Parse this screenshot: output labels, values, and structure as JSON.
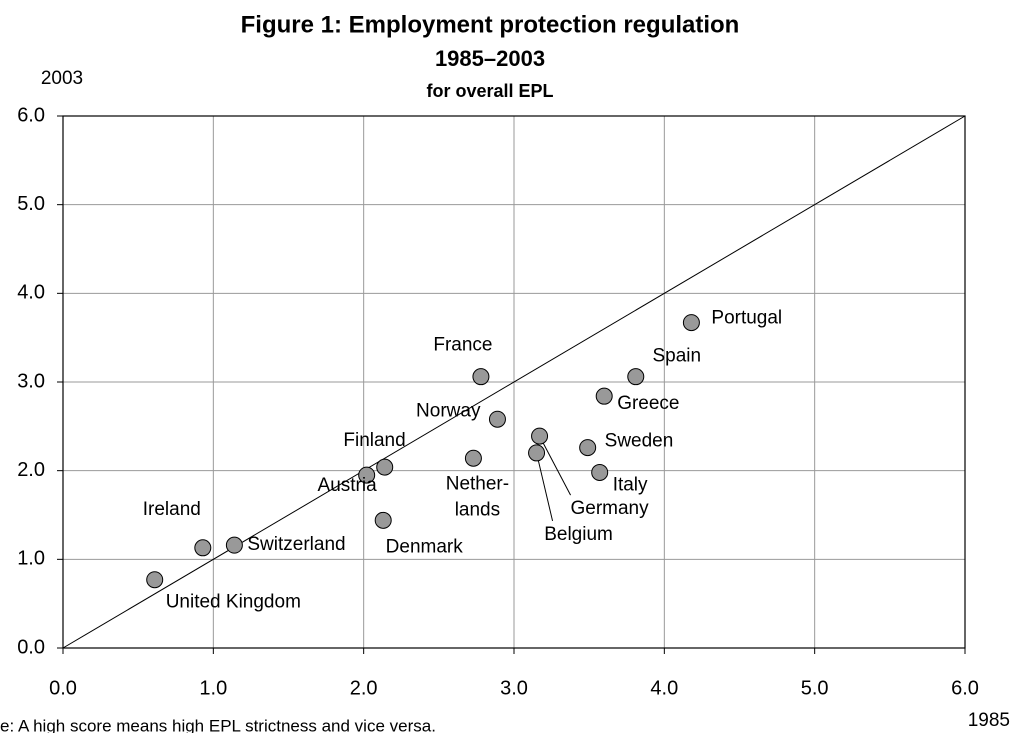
{
  "chart_data": {
    "type": "scatter",
    "title": "Figure 1: Employment protection regulation",
    "subtitle": "1985–2003",
    "subtitle2": "for overall EPL",
    "x_label": "1985",
    "y_label": "2003",
    "note": "e: A high score means high EPL strictness and vice versa.",
    "xlim": [
      0,
      6
    ],
    "ylim": [
      0,
      6
    ],
    "xticks": [
      {
        "value": 0,
        "label": "0.0"
      },
      {
        "value": 1,
        "label": "1.0"
      },
      {
        "value": 2,
        "label": "2.0"
      },
      {
        "value": 3,
        "label": "3.0"
      },
      {
        "value": 4,
        "label": "4.0"
      },
      {
        "value": 5,
        "label": "5.0"
      },
      {
        "value": 6,
        "label": "6.0"
      }
    ],
    "yticks": [
      {
        "value": 0,
        "label": "0.0"
      },
      {
        "value": 1,
        "label": "1.0"
      },
      {
        "value": 2,
        "label": "2.0"
      },
      {
        "value": 3,
        "label": "3.0"
      },
      {
        "value": 4,
        "label": "4.0"
      },
      {
        "value": 5,
        "label": "5.0"
      },
      {
        "value": 6,
        "label": "6.0"
      }
    ],
    "grid": true,
    "color": "#999999",
    "points": [
      {
        "label": [
          "United Kingdom"
        ],
        "x": 0.61,
        "y": 0.77
      },
      {
        "label": [
          "Ireland"
        ],
        "x": 0.93,
        "y": 1.13
      },
      {
        "label": [
          "Switzerland"
        ],
        "x": 1.14,
        "y": 1.16
      },
      {
        "label": [
          "Austria"
        ],
        "x": 2.02,
        "y": 1.95
      },
      {
        "label": [
          "Finland"
        ],
        "x": 2.14,
        "y": 2.04
      },
      {
        "label": [
          "Denmark"
        ],
        "x": 2.13,
        "y": 1.44
      },
      {
        "label": [
          "Nether-",
          "lands"
        ],
        "x": 2.73,
        "y": 2.14
      },
      {
        "label": [
          "France"
        ],
        "x": 2.78,
        "y": 3.06
      },
      {
        "label": [
          "Norway"
        ],
        "x": 2.89,
        "y": 2.58
      },
      {
        "label": [
          "Belgium"
        ],
        "x": 3.15,
        "y": 2.2
      },
      {
        "label": [
          "Germany"
        ],
        "x": 3.17,
        "y": 2.39
      },
      {
        "label": [
          "Sweden"
        ],
        "x": 3.49,
        "y": 2.26
      },
      {
        "label": [
          "Italy"
        ],
        "x": 3.57,
        "y": 1.98
      },
      {
        "label": [
          "Greece"
        ],
        "x": 3.6,
        "y": 2.84
      },
      {
        "label": [
          "Spain"
        ],
        "x": 3.81,
        "y": 3.06
      },
      {
        "label": [
          "Portugal"
        ],
        "x": 4.18,
        "y": 3.67
      }
    ]
  }
}
